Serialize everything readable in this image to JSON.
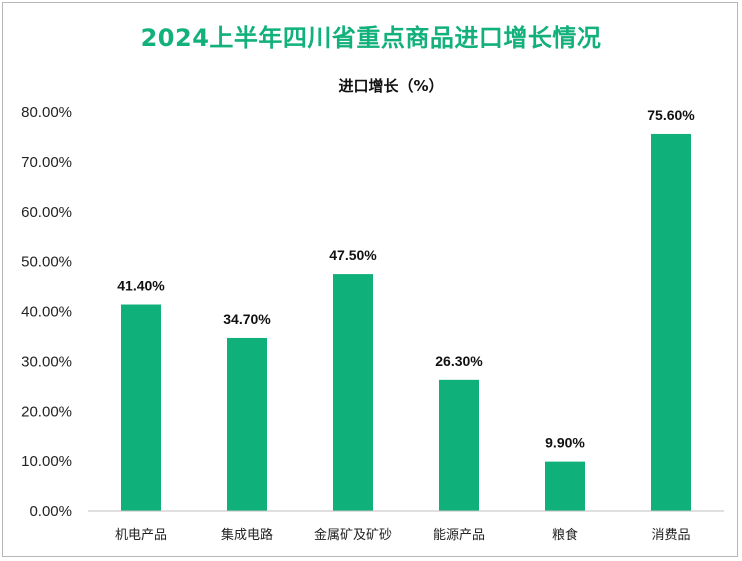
{
  "chart_data": {
    "type": "bar",
    "title": "2024上半年四川省重点商品进口增长情况",
    "series_label": "进口增长（%）",
    "categories": [
      "机电产品",
      "集成电路",
      "金属矿及矿砂",
      "能源产品",
      "粮食",
      "消费品"
    ],
    "values": [
      41.4,
      34.7,
      47.5,
      26.3,
      9.9,
      75.6
    ],
    "value_labels": [
      "41.40%",
      "34.70%",
      "47.50%",
      "26.30%",
      "9.90%",
      "75.60%"
    ],
    "y_ticks": [
      "0.00%",
      "10.00%",
      "20.00%",
      "30.00%",
      "40.00%",
      "50.00%",
      "60.00%",
      "70.00%",
      "80.00%"
    ],
    "ylim": [
      0,
      80
    ],
    "grid": false,
    "colors": {
      "bar": "#0fb07a",
      "title": "#12b07a"
    }
  }
}
